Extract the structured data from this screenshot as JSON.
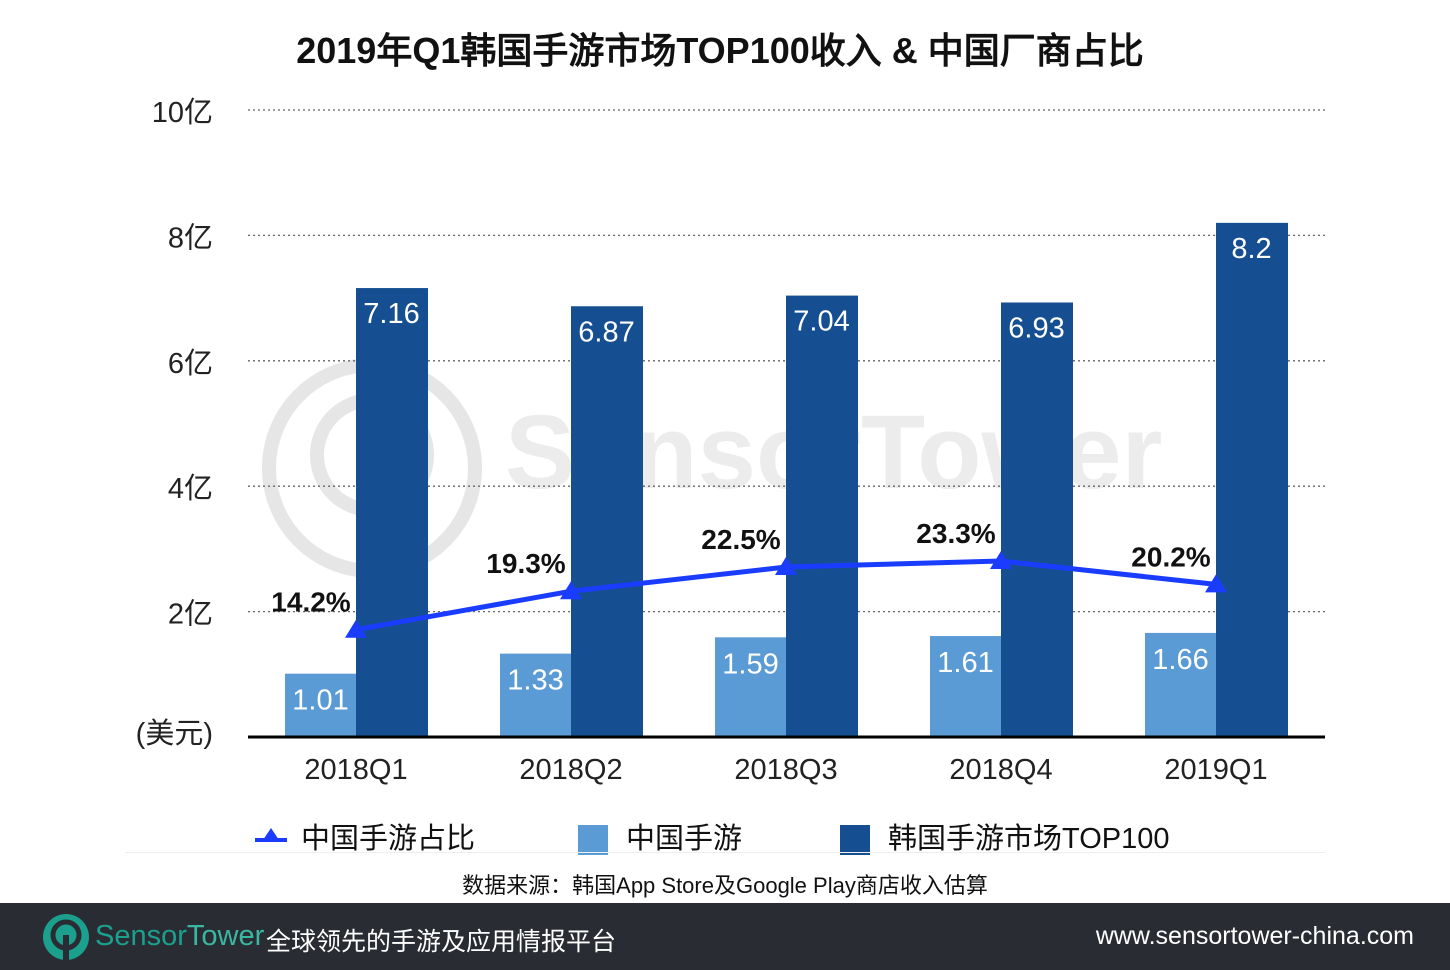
{
  "title": "2019年Q1韩国手游市场TOP100收入 & 中国厂商占比",
  "chart_data": {
    "type": "bar",
    "title": "2019年Q1韩国手游市场TOP100收入 & 中国厂商占比",
    "categories": [
      "2018Q1",
      "2018Q2",
      "2018Q3",
      "2018Q4",
      "2019Q1"
    ],
    "ylabel": "(美元)",
    "ylim": [
      0,
      10
    ],
    "yticks": [
      {
        "v": 2,
        "label": "2亿"
      },
      {
        "v": 4,
        "label": "4亿"
      },
      {
        "v": 6,
        "label": "6亿"
      },
      {
        "v": 8,
        "label": "8亿"
      },
      {
        "v": 10,
        "label": "10亿"
      }
    ],
    "grid": true,
    "legend_position": "bottom",
    "series": [
      {
        "name": "中国手游",
        "type": "bar",
        "color": "#5b9bd5",
        "values": [
          1.01,
          1.33,
          1.59,
          1.61,
          1.66
        ],
        "labels": [
          "1.01",
          "1.33",
          "1.59",
          "1.61",
          "1.66"
        ]
      },
      {
        "name": "韩国手游市场TOP100",
        "type": "bar",
        "color": "#154f91",
        "values": [
          7.16,
          6.87,
          7.04,
          6.93,
          8.2
        ],
        "labels": [
          "7.16",
          "6.87",
          "7.04",
          "6.93",
          "8.2"
        ]
      },
      {
        "name": "中国手游占比",
        "type": "line",
        "marker": "triangle",
        "color": "#1a3cff",
        "values": [
          14.2,
          19.3,
          22.5,
          23.3,
          20.2
        ],
        "labels": [
          "14.2%",
          "19.3%",
          "22.5%",
          "23.3%",
          "20.2%"
        ],
        "secondary_axis_range": [
          0,
          83
        ]
      }
    ]
  },
  "source": "数据来源：韩国App Store及Google Play商店收入估算",
  "watermark": "SensorTower",
  "footer": {
    "brand_part1": "Sensor",
    "brand_part2": "Tower",
    "slogan": "全球领先的手游及应用情报平台",
    "url": "www.sensortower-china.com"
  }
}
